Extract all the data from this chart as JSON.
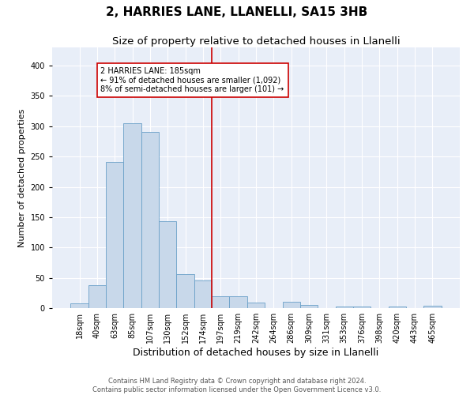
{
  "title": "2, HARRIES LANE, LLANELLI, SA15 3HB",
  "subtitle": "Size of property relative to detached houses in Llanelli",
  "xlabel": "Distribution of detached houses by size in Llanelli",
  "ylabel": "Number of detached properties",
  "bar_labels": [
    "18sqm",
    "40sqm",
    "63sqm",
    "85sqm",
    "107sqm",
    "130sqm",
    "152sqm",
    "174sqm",
    "197sqm",
    "219sqm",
    "242sqm",
    "264sqm",
    "286sqm",
    "309sqm",
    "331sqm",
    "353sqm",
    "376sqm",
    "398sqm",
    "420sqm",
    "443sqm",
    "465sqm"
  ],
  "bar_values": [
    8,
    38,
    241,
    305,
    291,
    143,
    56,
    46,
    20,
    20,
    9,
    0,
    11,
    5,
    0,
    3,
    3,
    0,
    3,
    0,
    4
  ],
  "bar_color": "#c8d8ea",
  "bar_edge_color": "#6aa0c8",
  "vline_x": 7.5,
  "vline_color": "#cc0000",
  "annotation_text": "2 HARRIES LANE: 185sqm\n← 91% of detached houses are smaller (1,092)\n8% of semi-detached houses are larger (101) →",
  "annotation_box_color": "white",
  "annotation_box_edge": "#cc0000",
  "ylim": [
    0,
    430
  ],
  "yticks": [
    0,
    50,
    100,
    150,
    200,
    250,
    300,
    350,
    400
  ],
  "background_color": "#e8eef8",
  "footer_line1": "Contains HM Land Registry data © Crown copyright and database right 2024.",
  "footer_line2": "Contains public sector information licensed under the Open Government Licence v3.0.",
  "title_fontsize": 11,
  "subtitle_fontsize": 9.5,
  "xlabel_fontsize": 9,
  "ylabel_fontsize": 8,
  "tick_fontsize": 7,
  "footer_fontsize": 6
}
